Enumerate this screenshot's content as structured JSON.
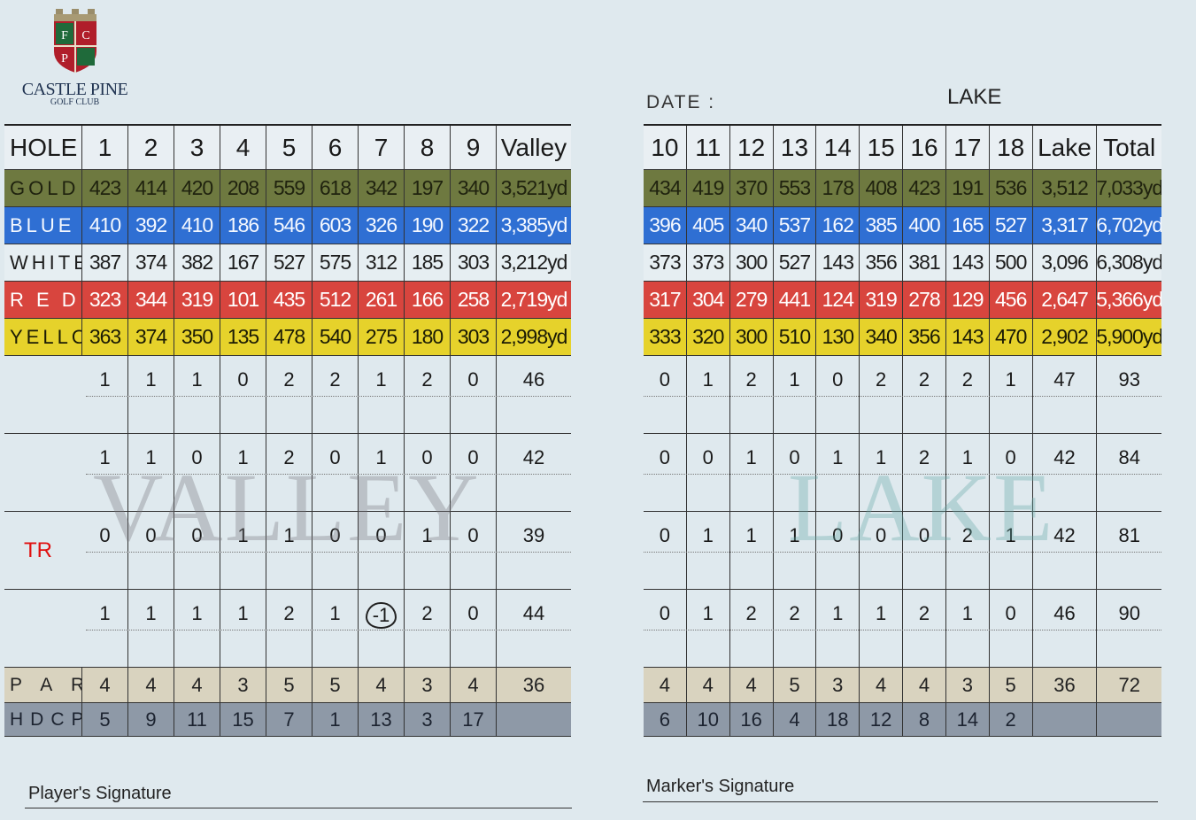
{
  "logo": {
    "monogram": [
      "F",
      "C",
      "P"
    ],
    "name": "CASTLE PINE",
    "sub": "GOLF CLUB"
  },
  "date_label": "DATE :",
  "lake_title": "LAKE",
  "colors": {
    "gold": "#6e7940",
    "blue": "#2f6fd3",
    "white": "#e6eef2",
    "red": "#d8453e",
    "yellow": "#e6d22b",
    "par": "#d9d3bf",
    "hdcp": "#8e99a7"
  },
  "front": {
    "header": [
      "HOLE",
      "1",
      "2",
      "3",
      "4",
      "5",
      "6",
      "7",
      "8",
      "9",
      "Valley"
    ],
    "tees": [
      {
        "cls": "gold",
        "label": "GOLD",
        "values": [
          "423",
          "414",
          "420",
          "208",
          "559",
          "618",
          "342",
          "197",
          "340",
          "3,521yd"
        ]
      },
      {
        "cls": "blue",
        "label": "BLUE",
        "values": [
          "410",
          "392",
          "410",
          "186",
          "546",
          "603",
          "326",
          "190",
          "322",
          "3,385yd"
        ]
      },
      {
        "cls": "white",
        "label": "WHITE",
        "values": [
          "387",
          "374",
          "382",
          "167",
          "527",
          "575",
          "312",
          "185",
          "303",
          "3,212yd"
        ]
      },
      {
        "cls": "red",
        "label": "R E D",
        "values": [
          "323",
          "344",
          "319",
          "101",
          "435",
          "512",
          "261",
          "166",
          "258",
          "2,719yd"
        ]
      },
      {
        "cls": "yellow",
        "label": "YELLOW",
        "values": [
          "363",
          "374",
          "350",
          "135",
          "478",
          "540",
          "275",
          "180",
          "303",
          "2,998yd"
        ]
      }
    ],
    "scores": [
      {
        "label": "",
        "values": [
          "1",
          "1",
          "1",
          "0",
          "2",
          "2",
          "1",
          "2",
          "0",
          "46"
        ]
      },
      {
        "label": "",
        "values": [
          "1",
          "1",
          "0",
          "1",
          "2",
          "0",
          "1",
          "0",
          "0",
          "42"
        ]
      },
      {
        "label": "TR",
        "values": [
          "0",
          "0",
          "0",
          "1",
          "1",
          "0",
          "0",
          "1",
          "0",
          "39"
        ]
      },
      {
        "label": "",
        "values": [
          "1",
          "1",
          "1",
          "1",
          "2",
          "1",
          "-1",
          "2",
          "0",
          "44"
        ]
      }
    ],
    "par": {
      "label": "P A R",
      "values": [
        "4",
        "4",
        "4",
        "3",
        "5",
        "5",
        "4",
        "3",
        "4",
        "36"
      ]
    },
    "hdcp": {
      "label": "HDCP",
      "values": [
        "5",
        "9",
        "11",
        "15",
        "7",
        "1",
        "13",
        "3",
        "17",
        ""
      ]
    },
    "watermark": "VALLEY"
  },
  "back": {
    "header": [
      "10",
      "11",
      "12",
      "13",
      "14",
      "15",
      "16",
      "17",
      "18",
      "Lake",
      "Total"
    ],
    "tees": [
      {
        "cls": "gold",
        "values": [
          "434",
          "419",
          "370",
          "553",
          "178",
          "408",
          "423",
          "191",
          "536",
          "3,512",
          "7,033yd"
        ]
      },
      {
        "cls": "blue",
        "values": [
          "396",
          "405",
          "340",
          "537",
          "162",
          "385",
          "400",
          "165",
          "527",
          "3,317",
          "6,702yd"
        ]
      },
      {
        "cls": "white",
        "values": [
          "373",
          "373",
          "300",
          "527",
          "143",
          "356",
          "381",
          "143",
          "500",
          "3,096",
          "6,308yd"
        ]
      },
      {
        "cls": "red",
        "values": [
          "317",
          "304",
          "279",
          "441",
          "124",
          "319",
          "278",
          "129",
          "456",
          "2,647",
          "5,366yd"
        ]
      },
      {
        "cls": "yellow",
        "values": [
          "333",
          "320",
          "300",
          "510",
          "130",
          "340",
          "356",
          "143",
          "470",
          "2,902",
          "5,900yd"
        ]
      }
    ],
    "scores": [
      {
        "values": [
          "0",
          "1",
          "2",
          "1",
          "0",
          "2",
          "2",
          "2",
          "1",
          "47",
          "93"
        ]
      },
      {
        "values": [
          "0",
          "0",
          "1",
          "0",
          "1",
          "1",
          "2",
          "1",
          "0",
          "42",
          "84"
        ]
      },
      {
        "values": [
          "0",
          "1",
          "1",
          "1",
          "0",
          "0",
          "0",
          "2",
          "1",
          "42",
          "81"
        ]
      },
      {
        "values": [
          "0",
          "1",
          "2",
          "2",
          "1",
          "1",
          "2",
          "1",
          "0",
          "46",
          "90"
        ]
      }
    ],
    "par": {
      "values": [
        "4",
        "4",
        "4",
        "5",
        "3",
        "4",
        "4",
        "3",
        "5",
        "36",
        "72"
      ]
    },
    "hdcp": {
      "values": [
        "6",
        "10",
        "16",
        "4",
        "18",
        "12",
        "8",
        "14",
        "2",
        "",
        ""
      ]
    },
    "watermark": "LAKE"
  },
  "signatures": {
    "player": "Player's Signature",
    "marker": "Marker's Signature"
  }
}
